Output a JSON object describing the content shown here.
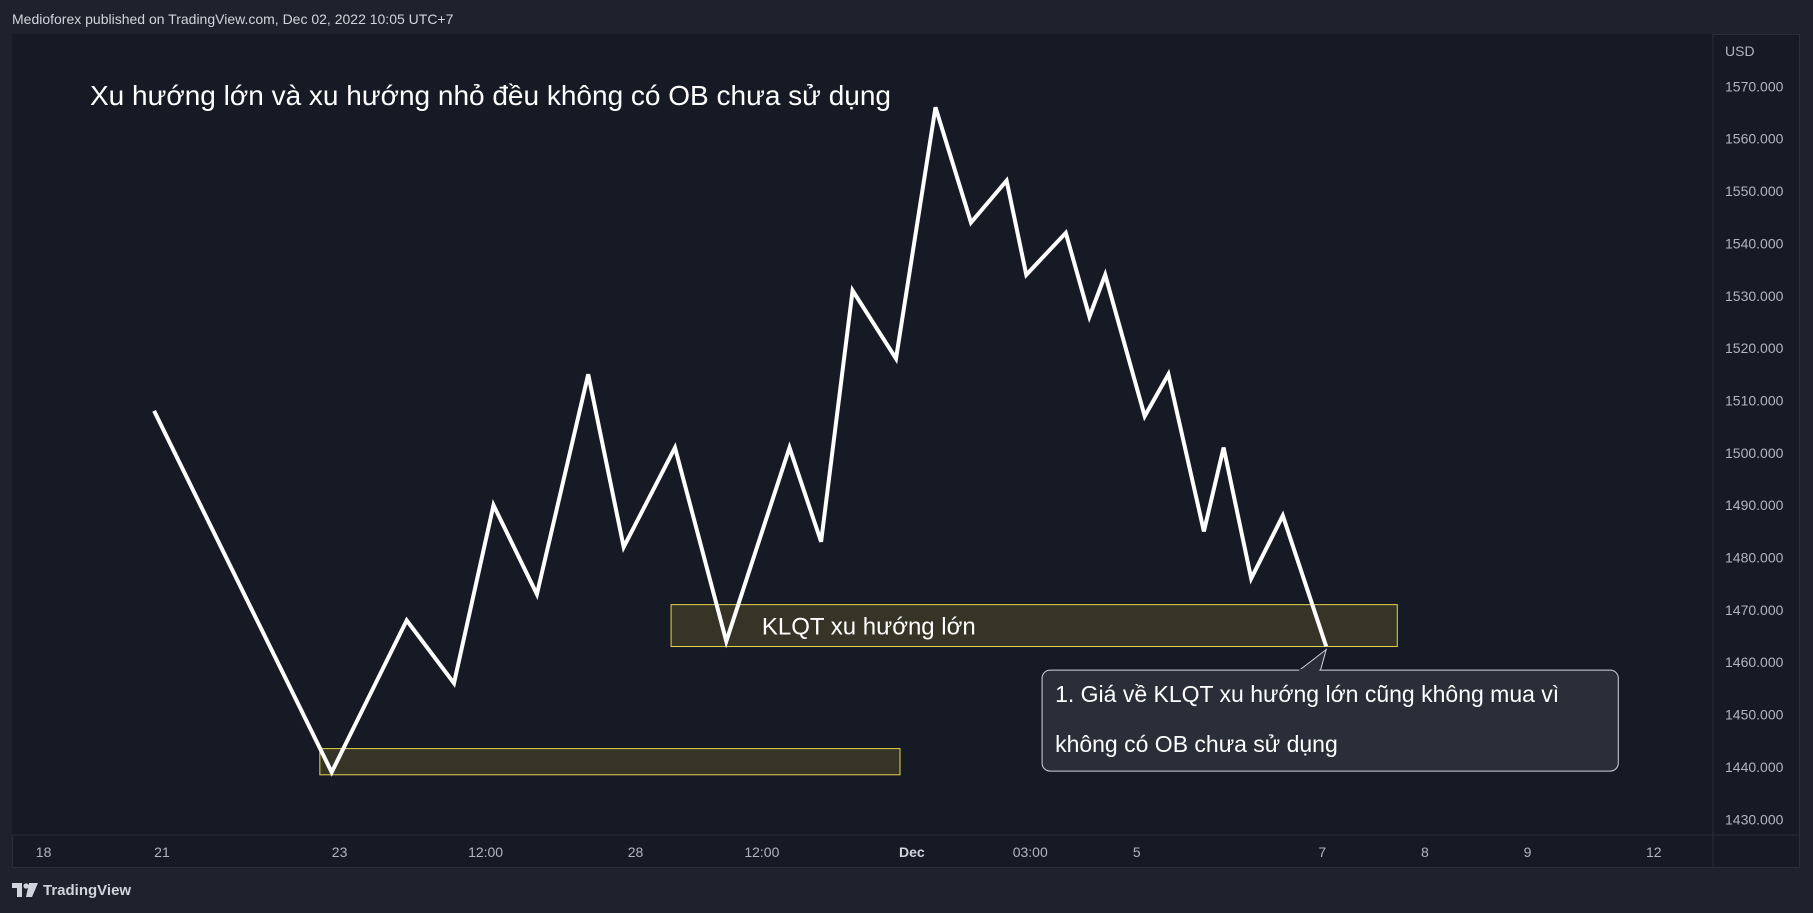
{
  "header": {
    "published": "Medioforex published on TradingView.com, Dec 02, 2022 10:05 UTC+7"
  },
  "footer": {
    "logo_text": "TradingView"
  },
  "colors": {
    "background": "#161a25",
    "line": "#ffffff",
    "zone_fill": "#3b3a27",
    "zone_border": "#e8d44d",
    "callout_fill": "#2a2e39",
    "callout_border": "#d1d4dc"
  },
  "chart_data": {
    "type": "line",
    "title": "Xu hướng lớn và xu hướng nhỏ đều không có OB chưa sử dụng",
    "currency_label": "USD",
    "ylim": [
      1427,
      1580
    ],
    "y_ticks": [
      1430,
      1440,
      1450,
      1460,
      1470,
      1480,
      1490,
      1500,
      1510,
      1520,
      1530,
      1540,
      1550,
      1560,
      1570
    ],
    "y_tick_labels": [
      "1430.000",
      "1440.000",
      "1450.000",
      "1460.000",
      "1470.000",
      "1480.000",
      "1490.000",
      "1500.000",
      "1510.000",
      "1520.000",
      "1530.000",
      "1540.000",
      "1550.000",
      "1560.000",
      "1570.000"
    ],
    "x_ticks": [
      {
        "label": "18",
        "x": 0.0,
        "bold": false
      },
      {
        "label": "21",
        "x": 3.0,
        "bold": false
      },
      {
        "label": "23",
        "x": 7.5,
        "bold": false
      },
      {
        "label": "12:00",
        "x": 11.2,
        "bold": false
      },
      {
        "label": "28",
        "x": 15.0,
        "bold": false
      },
      {
        "label": "12:00",
        "x": 18.2,
        "bold": false
      },
      {
        "label": "Dec",
        "x": 22.0,
        "bold": true
      },
      {
        "label": "03:00",
        "x": 25.0,
        "bold": false
      },
      {
        "label": "5",
        "x": 27.7,
        "bold": false
      },
      {
        "label": "7",
        "x": 32.4,
        "bold": false
      },
      {
        "label": "8",
        "x": 35.0,
        "bold": false
      },
      {
        "label": "9",
        "x": 37.6,
        "bold": false
      },
      {
        "label": "12",
        "x": 40.8,
        "bold": false
      }
    ],
    "xlim": [
      -0.8,
      42.3
    ],
    "series": [
      {
        "points": [
          [
            2.8,
            1508
          ],
          [
            7.3,
            1439
          ],
          [
            9.2,
            1468
          ],
          [
            10.4,
            1456
          ],
          [
            11.4,
            1490
          ],
          [
            12.5,
            1473
          ],
          [
            13.8,
            1515
          ],
          [
            14.7,
            1482
          ],
          [
            16.0,
            1501
          ],
          [
            17.3,
            1464
          ],
          [
            18.9,
            1501
          ],
          [
            19.7,
            1483
          ],
          [
            20.5,
            1531
          ],
          [
            21.6,
            1518
          ],
          [
            22.6,
            1566
          ],
          [
            23.5,
            1544
          ],
          [
            24.4,
            1552
          ],
          [
            24.9,
            1534
          ],
          [
            25.9,
            1542
          ],
          [
            26.5,
            1526
          ],
          [
            26.9,
            1534
          ],
          [
            27.9,
            1507
          ],
          [
            28.5,
            1515
          ],
          [
            29.4,
            1485
          ],
          [
            29.9,
            1501
          ],
          [
            30.6,
            1476
          ],
          [
            31.4,
            1488
          ],
          [
            32.5,
            1463
          ]
        ]
      }
    ],
    "zones": [
      {
        "name": "zone-major",
        "x0": 15.9,
        "x1": 34.3,
        "y0": 1463,
        "y1": 1471,
        "label": "KLQT xu hướng lớn",
        "label_x": 18.2
      },
      {
        "name": "zone-minor",
        "x0": 7.0,
        "x1": 21.7,
        "y0": 1438.5,
        "y1": 1443.5,
        "label": ""
      }
    ],
    "callout": {
      "lines": [
        "1. Giá về KLQT xu hướng lớn cũng không mua vì",
        "không có OB chưa sử dụng"
      ],
      "x0": 25.3,
      "x1": 39.9,
      "y_top": 1458.5,
      "y_bottom": 1439.2,
      "anchor": [
        32.5,
        1463
      ]
    }
  }
}
